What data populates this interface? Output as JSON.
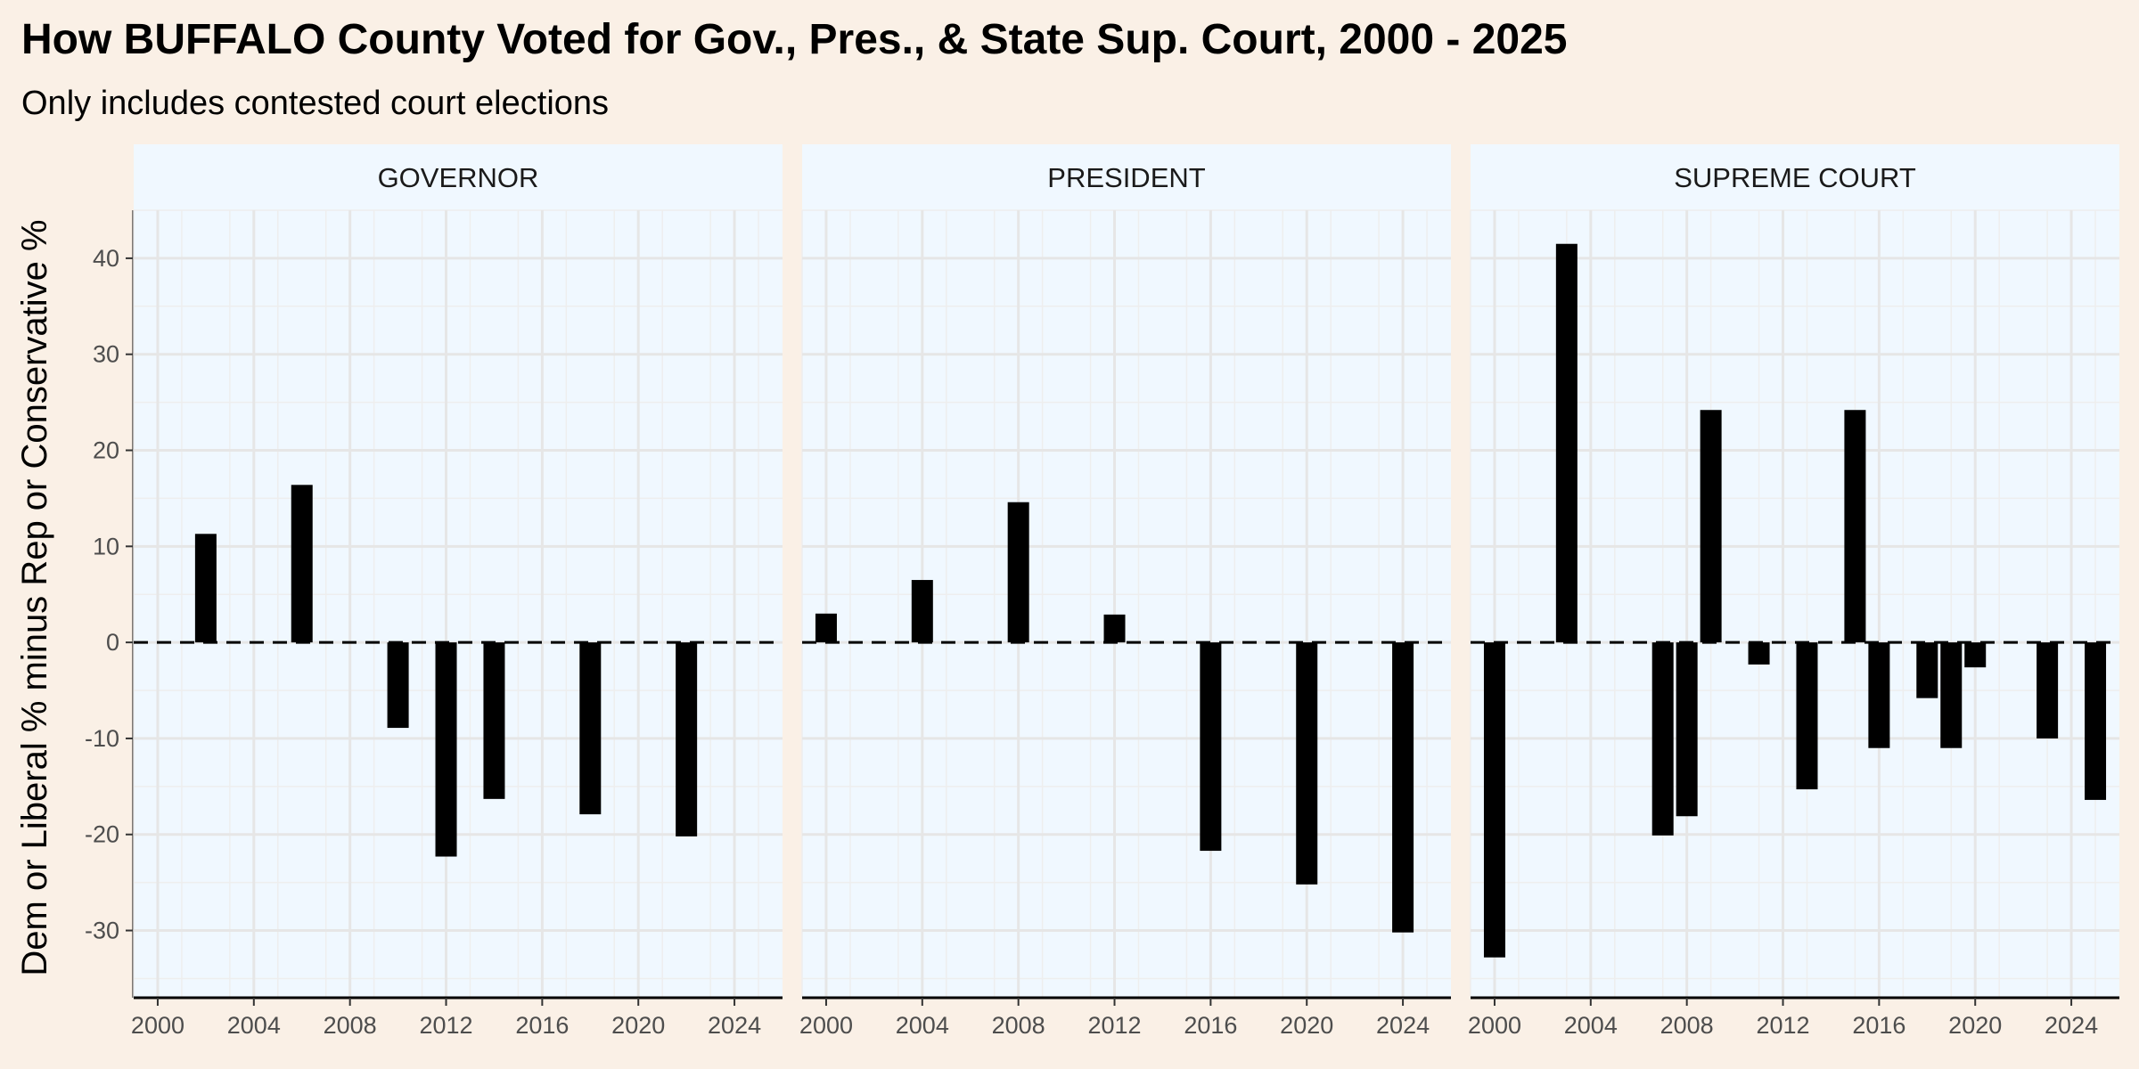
{
  "chart_data": {
    "type": "bar",
    "title": "How BUFFALO County Voted for Gov., Pres., & State Sup. Court, 2000 - 2025",
    "subtitle": "Only includes contested court elections",
    "xlabel": "",
    "ylabel": "Dem or Liberal % minus Rep or Conservative %",
    "xlim": [
      1999,
      2026
    ],
    "ylim": [
      -37,
      45
    ],
    "x_ticks": [
      "2000",
      "2004",
      "2008",
      "2012",
      "2016",
      "2020",
      "2024"
    ],
    "y_ticks": [
      "-30",
      "-20",
      "-10",
      "0",
      "10",
      "20",
      "30",
      "40"
    ],
    "reference_line": {
      "y": 0,
      "style": "dashed"
    },
    "grid": true,
    "colors": {
      "bar": "#000000",
      "panel_background": "#F0F8FF",
      "plot_background": "#FAF0E6",
      "grid": "#E6E6E6"
    },
    "panels": [
      {
        "label": "GOVERNOR",
        "x": [
          2002,
          2006,
          2010,
          2012,
          2014,
          2018,
          2022
        ],
        "values": [
          11.3,
          16.4,
          -8.9,
          -22.3,
          -16.3,
          -17.9,
          -20.2
        ]
      },
      {
        "label": "PRESIDENT",
        "x": [
          2000,
          2004,
          2008,
          2012,
          2016,
          2020,
          2024
        ],
        "values": [
          3.0,
          6.5,
          14.6,
          2.9,
          -21.7,
          -25.2,
          -30.2
        ]
      },
      {
        "label": "SUPREME COURT",
        "x": [
          2000,
          2003,
          2007,
          2008,
          2009,
          2011,
          2013,
          2015,
          2016,
          2018,
          2019,
          2020,
          2023,
          2025
        ],
        "values": [
          -32.8,
          41.5,
          -20.1,
          -18.1,
          24.2,
          -2.3,
          -15.3,
          24.2,
          -11.0,
          -5.8,
          -11.0,
          -2.6,
          -10.0,
          -16.4
        ]
      }
    ]
  }
}
